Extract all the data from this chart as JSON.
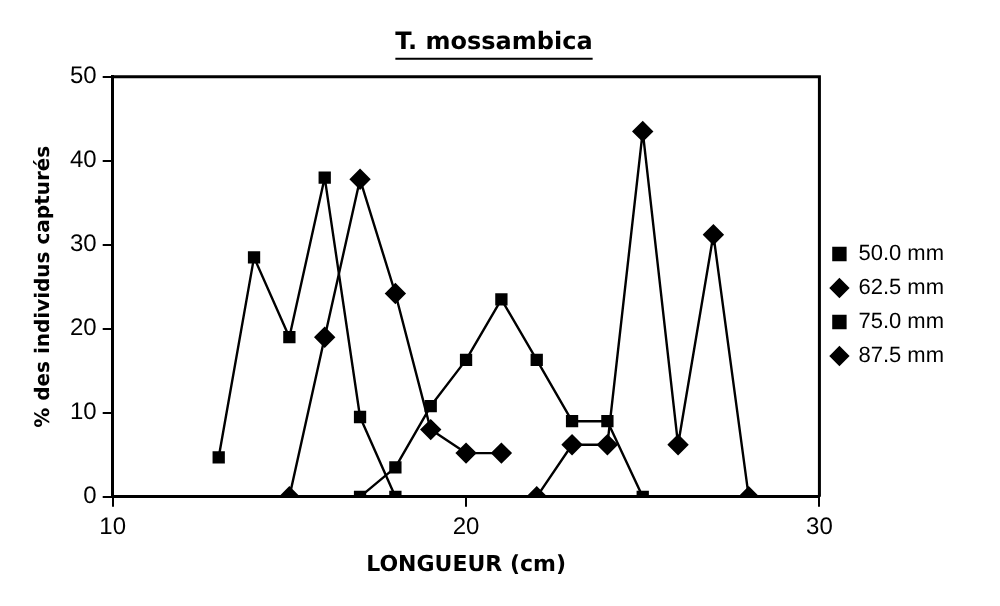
{
  "chart_data": {
    "type": "line",
    "title": "T. mossambica",
    "xlabel": "LONGUEUR (cm)",
    "ylabel": "% des individus capturés",
    "xlim": [
      10,
      30
    ],
    "xticks": [
      10,
      20,
      30
    ],
    "ylim": [
      0,
      50
    ],
    "yticks": [
      0,
      10,
      20,
      30,
      40,
      50
    ],
    "grid": false,
    "legend": "right",
    "series": [
      {
        "name": "50.0 mm",
        "color": "#000000",
        "marker": "square",
        "x": [
          13,
          14,
          15,
          16,
          17,
          18
        ],
        "values": [
          4.7,
          28.5,
          19,
          38,
          9.5,
          0
        ]
      },
      {
        "name": "62.5 mm",
        "color": "#000000",
        "marker": "diamond",
        "x": [
          15,
          16,
          17,
          18,
          19,
          20,
          21
        ],
        "values": [
          0,
          19,
          37.8,
          24.2,
          8,
          5.2,
          5.2
        ]
      },
      {
        "name": "75.0 mm",
        "color": "#000000",
        "marker": "square",
        "x": [
          17,
          18,
          19,
          20,
          21,
          22,
          23,
          24,
          25
        ],
        "values": [
          0,
          3.5,
          10.8,
          16.3,
          23.5,
          16.3,
          9,
          9,
          0
        ]
      },
      {
        "name": "87.5 mm",
        "color": "#000000",
        "marker": "diamond",
        "x": [
          22,
          23,
          24,
          25,
          26,
          27,
          28
        ],
        "values": [
          0,
          6.2,
          6.2,
          43.5,
          6.2,
          31.2,
          0
        ]
      }
    ]
  }
}
